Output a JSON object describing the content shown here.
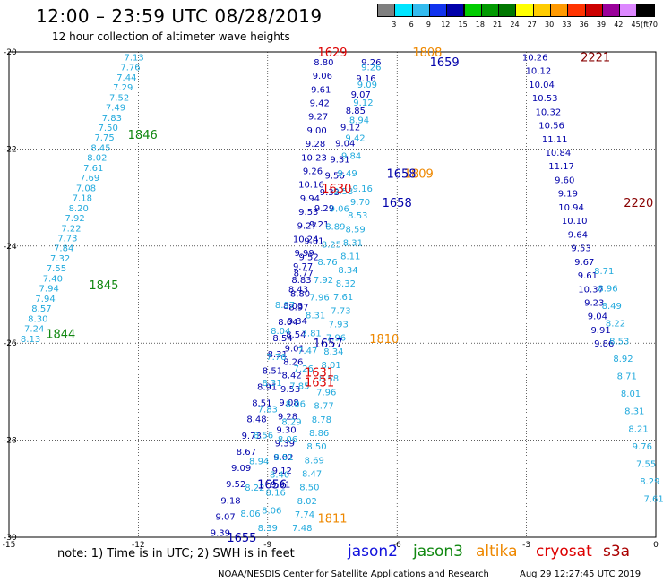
{
  "header": {
    "title": "12:00 – 23:59 UTC 08/28/2019",
    "subtitle": "12 hour collection of altimeter wave heights"
  },
  "scale": {
    "labels": [
      "3",
      "6",
      "9",
      "12",
      "15",
      "18",
      "21",
      "24",
      "27",
      "30",
      "33",
      "36",
      "39",
      "42",
      "45",
      "70"
    ],
    "unit": "(ft)",
    "colors": [
      "#7f7f7f",
      "#00e5ff",
      "#33bbee",
      "#1133ee",
      "#0000aa",
      "#00cc00",
      "#009900",
      "#007700",
      "#ffff00",
      "#ffcc00",
      "#ff9900",
      "#ff3300",
      "#cc0000",
      "#990099",
      "#dd88ff",
      "#000000"
    ]
  },
  "legend": [
    {
      "name": "jason2",
      "color": "#1111dd"
    },
    {
      "name": "jason3",
      "color": "#118811"
    },
    {
      "name": "altika",
      "color": "#ee8800"
    },
    {
      "name": "cryosat",
      "color": "#dd0000"
    },
    {
      "name": "s3a",
      "color": "#aa0000"
    }
  ],
  "note": "note:  1) Time is in UTC;  2) SWH is in feet",
  "footer": {
    "left": "NOAA/NESDIS Center for Satellite Applications and Research",
    "right": "Aug 29 12:27:45 UTC 2019"
  },
  "chart_data": {
    "type": "scatter",
    "xlim": [
      -15,
      0
    ],
    "ylim": [
      -30,
      -20
    ],
    "x_ticks": [
      -15,
      -12,
      -9,
      -6,
      -3,
      0
    ],
    "y_ticks": [
      -20,
      -22,
      -24,
      -26,
      -28,
      -30
    ],
    "x_tick_labels": [
      "-15",
      "-12",
      "-9",
      "-6",
      "-3",
      "0"
    ],
    "y_tick_labels": [
      "-20",
      "-22",
      "-24",
      "-26",
      "-28",
      "-30"
    ],
    "grid": true,
    "colors": {
      "light": "#22aadd",
      "dark": "#0000aa",
      "green": "#118811",
      "orange": "#ee8800",
      "red": "#dd0000",
      "maroon": "#880000"
    },
    "tracks": [
      {
        "name": "jason3-west",
        "color": "light",
        "start": [
          -12.1,
          -20.1
        ],
        "end": [
          -14.5,
          -25.9
        ],
        "values": [
          "7.13",
          "7.76",
          "7.44",
          "7.29",
          "7.52",
          "7.49",
          "7.83",
          "7.50",
          "7.75",
          "8.45",
          "8.02",
          "7.61",
          "7.69",
          "7.08",
          "7.18",
          "8.20",
          "7.92",
          "7.22",
          "7.73",
          "7.84",
          "7.32",
          "7.55",
          "7.40",
          "7.94",
          "7.94",
          "8.57",
          "8.30",
          "7.24",
          "8.13"
        ]
      },
      {
        "name": "jason2-a",
        "color": "dark",
        "start": [
          -7.7,
          -20.2
        ],
        "end": [
          -8.7,
          -28.9
        ],
        "values": [
          "8.80",
          "9.06",
          "9.61",
          "9.42",
          "9.27",
          "9.00",
          "9.28",
          "10.23",
          "9.26",
          "10.16",
          "9.94",
          "9.53",
          "9.27",
          "10.24",
          "9.99",
          "9.77",
          "8.83",
          "8.80",
          "8.97",
          "9.34",
          "8.54",
          "9.01",
          "8.26",
          "8.42",
          "9.53",
          "9.08",
          "9.28",
          "9.30",
          "9.39",
          "9.02",
          "9.12",
          "9.91"
        ]
      },
      {
        "name": "jason2-b",
        "color": "dark",
        "start": [
          -6.6,
          -20.2
        ],
        "end": [
          -10.1,
          -29.9
        ],
        "values": [
          "9.26",
          "9.16",
          "9.07",
          "8.85",
          "9.12",
          "9.04",
          "9.31",
          "9.56",
          "9.33",
          "9.29",
          "9.21",
          "9.01",
          "9.52",
          "8.77",
          "8.43",
          "8.03",
          "8.04",
          "8.54",
          "8.31",
          "8.51",
          "8.91",
          "8.51",
          "8.48",
          "9.73",
          "8.67",
          "9.09",
          "9.52",
          "9.18",
          "9.07",
          "9.39"
        ]
      },
      {
        "name": "jason3-a",
        "color": "light",
        "start": [
          -6.6,
          -20.3
        ],
        "end": [
          -9.0,
          -29.8
        ],
        "values": [
          "9.26",
          "9.09",
          "9.12",
          "8.94",
          "9.42",
          "9.84",
          "9.49",
          "9.53",
          "9.06",
          "8.89",
          "8.25",
          "8.76",
          "7.92",
          "7.96",
          "8.31",
          "7.81",
          "7.47",
          "7.26",
          "7.85",
          "8.06",
          "8.29",
          "8.06",
          "8.51",
          "8.40",
          "8.16",
          "8.06",
          "8.39"
        ]
      },
      {
        "name": "jason3-b",
        "color": "light",
        "start": [
          -6.8,
          -22.8
        ],
        "end": [
          -8.2,
          -29.8
        ],
        "values": [
          "9.16",
          "9.70",
          "8.53",
          "8.59",
          "8.31",
          "8.11",
          "8.34",
          "8.32",
          "7.61",
          "7.73",
          "7.93",
          "7.96",
          "8.34",
          "8.01",
          "8.58",
          "7.96",
          "8.77",
          "8.78",
          "8.86",
          "8.50",
          "8.69",
          "8.47",
          "8.50",
          "8.02",
          "7.74",
          "7.48"
        ]
      },
      {
        "name": "jason3-c",
        "color": "light",
        "start": [
          -8.6,
          -25.2
        ],
        "end": [
          -9.4,
          -29.5
        ],
        "values": [
          "8.97",
          "8.04",
          "7.76",
          "8.31",
          "7.83",
          "8.56",
          "8.94",
          "8.22",
          "8.06"
        ]
      },
      {
        "name": "east-a",
        "color": "dark",
        "start": [
          -2.8,
          -20.1
        ],
        "end": [
          -1.2,
          -26.0
        ],
        "values": [
          "10.26",
          "10.12",
          "10.04",
          "10.53",
          "10.32",
          "10.56",
          "11.11",
          "10.84",
          "11.17",
          "9.60",
          "9.19",
          "10.94",
          "10.10",
          "9.64",
          "9.53",
          "9.67",
          "9.61",
          "10.37",
          "9.23",
          "9.04",
          "9.91",
          "9.86"
        ]
      },
      {
        "name": "east-b",
        "color": "light",
        "start": [
          -1.2,
          -24.5
        ],
        "end": [
          -0.05,
          -29.2
        ],
        "values": [
          "8.71",
          "8.96",
          "8.49",
          "8.22",
          "8.53",
          "8.92",
          "8.71",
          "8.01",
          "8.31",
          "8.21",
          "9.76",
          "7.55",
          "8.29",
          "7.61"
        ]
      }
    ],
    "labels": [
      {
        "text": "1846",
        "x": -11.9,
        "y": -21.7,
        "color": "green",
        "size": 13
      },
      {
        "text": "1845",
        "x": -12.8,
        "y": -24.8,
        "color": "green",
        "size": 13
      },
      {
        "text": "1844",
        "x": -13.8,
        "y": -25.8,
        "color": "green",
        "size": 13
      },
      {
        "text": "1629",
        "x": -7.5,
        "y": -20.0,
        "color": "red",
        "size": 13
      },
      {
        "text": "1808",
        "x": -5.3,
        "y": -20.0,
        "color": "orange",
        "size": 13
      },
      {
        "text": "1659",
        "x": -4.9,
        "y": -20.2,
        "color": "dark",
        "size": 13
      },
      {
        "text": "2221",
        "x": -1.4,
        "y": -20.1,
        "color": "maroon",
        "size": 13
      },
      {
        "text": "1809",
        "x": -5.5,
        "y": -22.5,
        "color": "orange",
        "size": 13
      },
      {
        "text": "1658",
        "x": -5.9,
        "y": -22.5,
        "color": "dark",
        "size": 13
      },
      {
        "text": "1630",
        "x": -7.4,
        "y": -22.8,
        "color": "red",
        "size": 13
      },
      {
        "text": "1658",
        "x": -6.0,
        "y": -23.1,
        "color": "dark",
        "size": 13
      },
      {
        "text": "2220",
        "x": -0.4,
        "y": -23.1,
        "color": "maroon",
        "size": 13
      },
      {
        "text": "1657",
        "x": -7.6,
        "y": -26.0,
        "color": "dark",
        "size": 13
      },
      {
        "text": "1810",
        "x": -6.3,
        "y": -25.9,
        "color": "orange",
        "size": 13
      },
      {
        "text": "1631",
        "x": -7.8,
        "y": -26.6,
        "color": "red",
        "size": 13
      },
      {
        "text": "1631",
        "x": -7.8,
        "y": -26.8,
        "color": "red",
        "size": 13
      },
      {
        "text": "1656",
        "x": -8.9,
        "y": -28.9,
        "color": "dark",
        "size": 13
      },
      {
        "text": "1811",
        "x": -7.5,
        "y": -29.6,
        "color": "orange",
        "size": 13
      },
      {
        "text": "1655",
        "x": -9.6,
        "y": -30.0,
        "color": "dark",
        "size": 13
      }
    ]
  }
}
